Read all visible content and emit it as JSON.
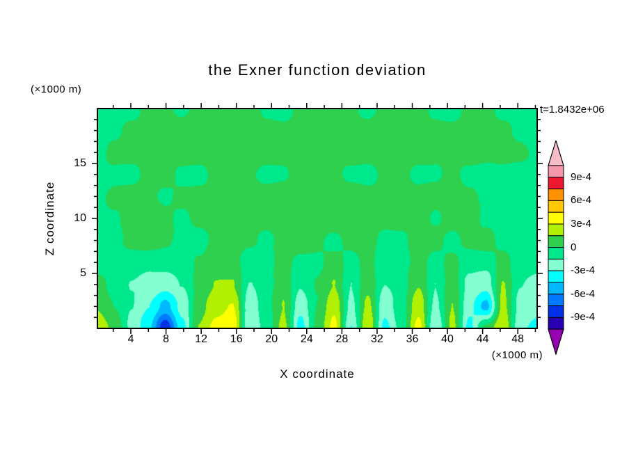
{
  "chart_data": {
    "type": "heatmap",
    "subtype": "filled_contour",
    "title": "the Exner function deviation",
    "time_annotation": "t=1.8432e+06",
    "xlabel": "X coordinate",
    "x_unit": "(×1000 m)",
    "ylabel": "Z coordinate",
    "y_unit": "(×1000 m)",
    "x_range": [
      0.2,
      50.2
    ],
    "z_range": [
      0,
      20
    ],
    "x_ticks": [
      4,
      8,
      12,
      16,
      20,
      24,
      28,
      32,
      36,
      40,
      44,
      48
    ],
    "y_ticks": [
      5,
      10,
      15
    ],
    "x_minor_tick_step": 2,
    "y_minor_tick_step": 1,
    "values_scale": 0.0001,
    "colorbar": {
      "labels": [
        "9e-4",
        "6e-4",
        "3e-4",
        "0",
        "-3e-4",
        "-6e-4",
        "-9e-4"
      ],
      "levels_x1e4": [
        -10.5,
        -9,
        -7.5,
        -6,
        -4.5,
        -3,
        -1.5,
        0,
        1.5,
        3,
        4.5,
        6,
        7.5,
        9,
        10.5
      ],
      "colors_low_to_high": [
        "#2800b4",
        "#0030e8",
        "#0078ff",
        "#00b8ff",
        "#00ffff",
        "#84ffd2",
        "#00e88c",
        "#2ed04e",
        "#b0f000",
        "#ffff00",
        "#ffc800",
        "#ff9000",
        "#f01830",
        "#f598ac"
      ],
      "under_arrow_color": "#9800b4",
      "over_arrow_color": "#f6bcca"
    },
    "grid": {
      "x_count": 27,
      "z_count": 11,
      "order": "rows bottom (z=0) to top (z=20), values in units of 1e-4",
      "values_x1e4": [
        [
          2.5,
          1.0,
          -2.0,
          -4.0,
          -8.5,
          -3.5,
          1.5,
          3.5,
          4.0,
          -3.0,
          -1.0,
          2.0,
          -3.5,
          0.5,
          3.5,
          -3.0,
          3.0,
          -3.5,
          -1.0,
          3.5,
          -3.0,
          2.0,
          -3.5,
          0.5,
          3.0,
          -2.5,
          -3.5
        ],
        [
          1.5,
          0.0,
          -1.5,
          -3.0,
          -5.0,
          -2.5,
          1.0,
          2.5,
          3.0,
          -2.5,
          -0.5,
          1.5,
          -2.5,
          0.0,
          2.5,
          -2.0,
          2.0,
          -2.5,
          -0.5,
          2.5,
          -2.0,
          1.5,
          -2.5,
          -5.0,
          2.0,
          -2.0,
          -2.5
        ],
        [
          0.5,
          -0.5,
          -1.5,
          -2.0,
          -2.5,
          -1.5,
          0.5,
          1.5,
          1.5,
          -1.5,
          -0.5,
          1.0,
          -1.5,
          0.0,
          1.5,
          -1.5,
          1.0,
          -1.5,
          -0.5,
          1.5,
          -1.5,
          1.0,
          -2.0,
          -2.5,
          1.5,
          -1.5,
          -2.0
        ],
        [
          -0.4,
          -0.6,
          -0.8,
          -1.2,
          -0.8,
          -0.5,
          0.3,
          0.6,
          0.4,
          -0.6,
          -0.4,
          0.5,
          -0.6,
          -0.3,
          0.6,
          -0.6,
          0.4,
          -0.7,
          -0.4,
          0.5,
          -0.6,
          0.3,
          -0.8,
          -0.9,
          0.4,
          -0.7,
          -0.9
        ],
        [
          -0.5,
          -0.3,
          0.4,
          0.7,
          0.3,
          -0.4,
          -0.6,
          0.5,
          0.8,
          0.3,
          -0.5,
          0.6,
          0.9,
          0.4,
          -0.4,
          0.5,
          0.7,
          -0.5,
          -0.3,
          0.6,
          0.4,
          -0.5,
          0.3,
          0.6,
          -0.4,
          -0.6,
          -0.5
        ],
        [
          -0.4,
          -0.2,
          0.5,
          0.7,
          0.4,
          -0.3,
          0.6,
          0.8,
          0.5,
          0.6,
          0.7,
          0.9,
          0.7,
          0.6,
          0.8,
          0.7,
          0.5,
          0.7,
          0.6,
          0.4,
          -0.3,
          0.5,
          0.6,
          -0.4,
          -0.5,
          -0.3,
          -0.5
        ],
        [
          -0.5,
          0.4,
          0.6,
          0.4,
          -0.3,
          0.5,
          0.8,
          0.6,
          0.7,
          0.9,
          0.8,
          0.7,
          0.9,
          0.8,
          0.6,
          0.8,
          0.7,
          0.6,
          0.8,
          0.6,
          0.5,
          0.7,
          0.4,
          -0.3,
          -0.6,
          -0.4,
          -0.6
        ],
        [
          -0.6,
          -0.4,
          -0.6,
          0.4,
          0.6,
          -0.4,
          -0.6,
          0.5,
          0.7,
          0.4,
          -0.5,
          -0.3,
          0.6,
          0.8,
          0.5,
          -0.4,
          -0.6,
          0.4,
          0.6,
          -0.5,
          -0.3,
          0.5,
          -0.6,
          -0.8,
          -0.5,
          -0.7,
          -0.8
        ],
        [
          -0.4,
          0.5,
          0.7,
          0.5,
          0.6,
          0.8,
          0.6,
          0.4,
          0.7,
          0.9,
          0.7,
          0.5,
          0.8,
          0.6,
          0.7,
          0.9,
          0.6,
          0.8,
          0.6,
          0.7,
          0.5,
          0.6,
          0.8,
          0.5,
          0.6,
          0.4,
          -0.4
        ],
        [
          -0.5,
          -0.3,
          0.5,
          0.6,
          0.4,
          0.6,
          0.8,
          0.6,
          0.5,
          0.7,
          0.5,
          0.4,
          0.6,
          0.8,
          0.6,
          0.7,
          0.5,
          0.6,
          0.7,
          0.5,
          0.6,
          0.4,
          0.5,
          0.7,
          0.4,
          -0.3,
          -0.5
        ],
        [
          -0.6,
          -0.4,
          -0.5,
          0.4,
          0.5,
          -0.3,
          0.5,
          0.6,
          0.4,
          0.5,
          -0.4,
          -0.5,
          0.4,
          0.6,
          0.5,
          0.4,
          -0.4,
          0.5,
          0.6,
          0.4,
          -0.3,
          -0.5,
          0.4,
          0.5,
          -0.4,
          -0.6,
          -0.7
        ]
      ]
    }
  }
}
